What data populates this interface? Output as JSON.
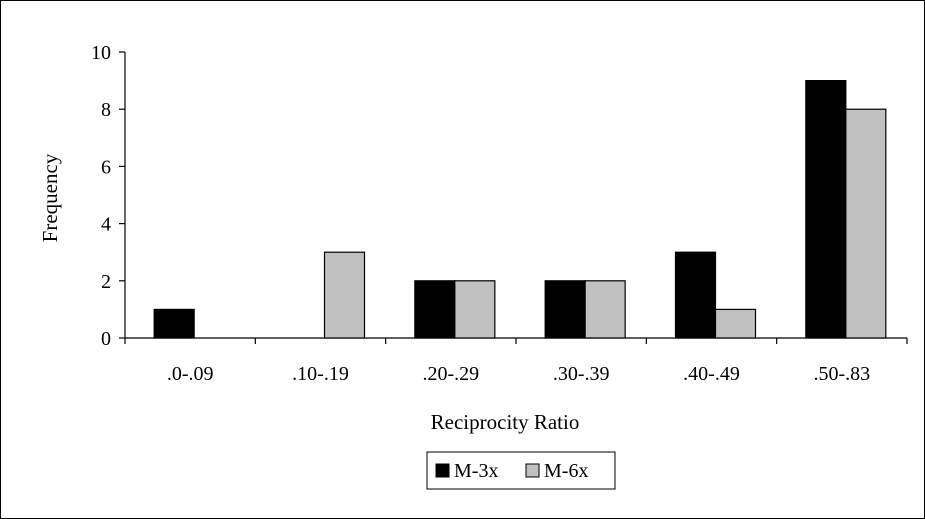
{
  "chart_data": {
    "type": "bar",
    "categories": [
      ".0-.09",
      ".10-.19",
      ".20-.29",
      ".30-.39",
      ".40-.49",
      ".50-.83"
    ],
    "series": [
      {
        "name": "M-3x",
        "values": [
          1,
          0,
          2,
          2,
          3,
          9
        ],
        "color": "#000000"
      },
      {
        "name": "M-6x",
        "values": [
          0,
          3,
          2,
          2,
          1,
          8
        ],
        "color": "#c0c0c0"
      }
    ],
    "xlabel": "Reciprocity Ratio",
    "ylabel": "Frequency",
    "ylim": [
      0,
      10
    ],
    "yticks": [
      0,
      2,
      4,
      6,
      8,
      10
    ],
    "grid": false,
    "legend": "bottom-center"
  }
}
